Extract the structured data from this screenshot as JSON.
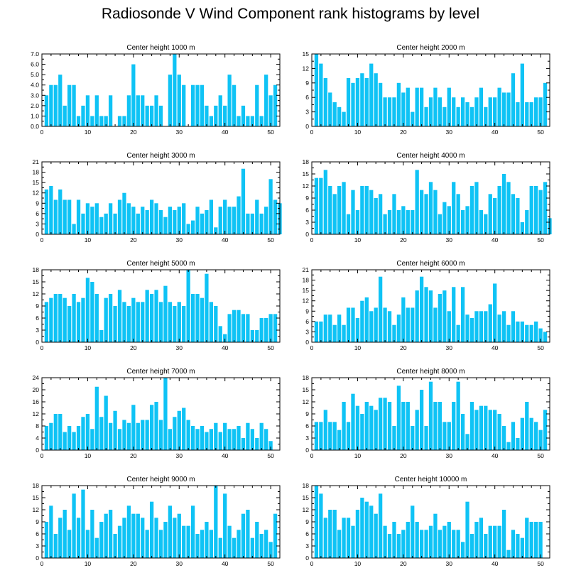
{
  "figure": {
    "title": "Radiosonde V Wind Component rank histograms by level",
    "bar_color": "#0fc3f5",
    "axis_color": "#000000"
  },
  "chart_data": [
    {
      "type": "bar",
      "title": "Center height 1000 m",
      "x_start": 1,
      "xlim": [
        0,
        52
      ],
      "xticks": [
        0,
        10,
        20,
        30,
        40,
        50
      ],
      "ylim": [
        0,
        7
      ],
      "yticks": [
        "0.0",
        "1.0",
        "2.0",
        "3.0",
        "4.0",
        "5.0",
        "6.0",
        "7.0"
      ],
      "values": [
        3,
        4,
        4,
        5,
        2,
        4,
        4,
        1,
        2,
        3,
        1,
        3,
        1,
        1,
        3,
        0,
        1,
        1,
        3,
        6,
        3,
        3,
        2,
        2,
        3,
        2,
        0,
        5,
        7,
        5,
        4,
        0,
        4,
        4,
        4,
        2,
        1,
        2,
        3,
        2,
        5,
        4,
        1,
        2,
        1,
        1,
        4,
        1,
        5,
        3,
        4
      ]
    },
    {
      "type": "bar",
      "title": "Center height 2000 m",
      "x_start": 1,
      "xlim": [
        0,
        52
      ],
      "xticks": [
        0,
        10,
        20,
        30,
        40,
        50
      ],
      "ylim": [
        0,
        15
      ],
      "yticks": [
        "0",
        "3",
        "6",
        "9",
        "12",
        "15"
      ],
      "values": [
        15,
        13,
        10,
        7,
        5,
        4,
        3,
        10,
        9,
        10,
        11,
        10,
        13,
        11,
        9,
        6,
        6,
        6,
        9,
        7,
        8,
        3,
        8,
        8,
        4,
        6,
        8,
        6,
        4,
        8,
        6,
        4,
        6,
        5,
        4,
        6,
        8,
        4,
        6,
        6,
        8,
        7,
        7,
        11,
        5,
        13,
        5,
        5,
        6,
        6,
        9
      ]
    },
    {
      "type": "bar",
      "title": "Center height 3000 m",
      "x_start": 1,
      "xlim": [
        0,
        52
      ],
      "xticks": [
        0,
        10,
        20,
        30,
        40,
        50
      ],
      "ylim": [
        0,
        21
      ],
      "yticks": [
        "0",
        "3",
        "6",
        "9",
        "12",
        "15",
        "18",
        "21"
      ],
      "values": [
        13,
        14,
        10,
        13,
        10,
        10,
        3,
        10,
        6,
        9,
        8,
        9,
        5,
        6,
        9,
        6,
        10,
        12,
        9,
        8,
        6,
        8,
        7,
        10,
        9,
        7,
        5,
        8,
        7,
        8,
        9,
        3,
        4,
        8,
        6,
        7,
        10,
        2,
        8,
        10,
        8,
        8,
        11,
        19,
        6,
        6,
        10,
        6,
        8,
        16,
        10,
        9
      ]
    },
    {
      "type": "bar",
      "title": "Center height 4000 m",
      "x_start": 1,
      "xlim": [
        0,
        52
      ],
      "xticks": [
        0,
        10,
        20,
        30,
        40,
        50
      ],
      "ylim": [
        0,
        18
      ],
      "yticks": [
        "0",
        "3",
        "6",
        "9",
        "12",
        "15",
        "18"
      ],
      "values": [
        14,
        14,
        16,
        12,
        10,
        12,
        13,
        5,
        11,
        6,
        12,
        12,
        11,
        9,
        10,
        5,
        6,
        10,
        6,
        7,
        6,
        6,
        16,
        11,
        10,
        13,
        11,
        5,
        8,
        7,
        13,
        10,
        6,
        7,
        12,
        13,
        6,
        5,
        10,
        9,
        12,
        15,
        13,
        10,
        9,
        3,
        6,
        12,
        12,
        11,
        13,
        4
      ]
    },
    {
      "type": "bar",
      "title": "Center height 5000 m",
      "x_start": 1,
      "xlim": [
        0,
        52
      ],
      "xticks": [
        0,
        10,
        20,
        30,
        40,
        50
      ],
      "ylim": [
        0,
        18
      ],
      "yticks": [
        "0",
        "3",
        "6",
        "9",
        "12",
        "15",
        "18"
      ],
      "values": [
        10,
        11,
        12,
        12,
        11,
        9,
        12,
        10,
        11,
        16,
        15,
        12,
        3,
        11,
        12,
        9,
        13,
        10,
        9,
        11,
        10,
        10,
        13,
        12,
        13,
        10,
        14,
        10,
        9,
        10,
        9,
        18,
        12,
        12,
        11,
        17,
        10,
        9,
        4,
        2,
        7,
        8,
        8,
        7,
        7,
        3,
        3,
        6,
        6,
        7,
        7
      ]
    },
    {
      "type": "bar",
      "title": "Center height 6000 m",
      "x_start": 1,
      "xlim": [
        0,
        52
      ],
      "xticks": [
        0,
        10,
        20,
        30,
        40,
        50
      ],
      "ylim": [
        0,
        21
      ],
      "yticks": [
        "0",
        "3",
        "6",
        "9",
        "12",
        "15",
        "18",
        "21"
      ],
      "values": [
        6,
        6,
        8,
        8,
        5,
        8,
        5,
        10,
        10,
        7,
        12,
        13,
        9,
        10,
        19,
        10,
        9,
        5,
        8,
        13,
        10,
        10,
        15,
        19,
        16,
        15,
        10,
        14,
        15,
        9,
        16,
        5,
        16,
        8,
        7,
        9,
        9,
        9,
        11,
        17,
        8,
        9,
        5,
        9,
        6,
        6,
        5,
        5,
        6,
        4,
        3
      ]
    },
    {
      "type": "bar",
      "title": "Center height 7000 m",
      "x_start": 1,
      "xlim": [
        0,
        52
      ],
      "xticks": [
        0,
        10,
        20,
        30,
        40,
        50
      ],
      "ylim": [
        0,
        24
      ],
      "yticks": [
        "0",
        "4",
        "8",
        "12",
        "16",
        "20",
        "24"
      ],
      "values": [
        8,
        9,
        12,
        12,
        6,
        8,
        6,
        8,
        11,
        12,
        7,
        21,
        11,
        18,
        9,
        13,
        7,
        10,
        9,
        15,
        9,
        10,
        10,
        15,
        16,
        10,
        24,
        7,
        11,
        13,
        14,
        10,
        8,
        7,
        8,
        6,
        7,
        9,
        6,
        9,
        7,
        7,
        8,
        4,
        9,
        7,
        4,
        9,
        7,
        3
      ]
    },
    {
      "type": "bar",
      "title": "Center height 8000 m",
      "x_start": 1,
      "xlim": [
        0,
        52
      ],
      "xticks": [
        0,
        10,
        20,
        30,
        40,
        50
      ],
      "ylim": [
        0,
        18
      ],
      "yticks": [
        "0",
        "3",
        "6",
        "9",
        "12",
        "15",
        "18"
      ],
      "values": [
        7,
        7,
        10,
        7,
        7,
        5,
        12,
        7,
        14,
        11,
        9,
        12,
        11,
        10,
        13,
        13,
        12,
        6,
        16,
        12,
        12,
        6,
        10,
        15,
        6,
        17,
        12,
        12,
        7,
        7,
        12,
        17,
        9,
        4,
        12,
        10,
        11,
        11,
        10,
        10,
        9,
        6,
        2,
        7,
        3,
        8,
        12,
        8,
        7,
        5,
        10
      ]
    },
    {
      "type": "bar",
      "title": "Center height 9000 m",
      "x_start": 1,
      "xlim": [
        0,
        52
      ],
      "xticks": [
        0,
        10,
        20,
        30,
        40,
        50
      ],
      "ylim": [
        0,
        18
      ],
      "yticks": [
        "0",
        "3",
        "6",
        "9",
        "12",
        "15",
        "18"
      ],
      "values": [
        9,
        13,
        6,
        10,
        12,
        7,
        16,
        10,
        17,
        7,
        12,
        5,
        9,
        11,
        12,
        6,
        8,
        10,
        13,
        11,
        11,
        10,
        7,
        14,
        10,
        7,
        9,
        13,
        10,
        11,
        8,
        8,
        13,
        6,
        7,
        9,
        7,
        18,
        5,
        16,
        8,
        5,
        7,
        11,
        12,
        5,
        9,
        6,
        7,
        4,
        11
      ]
    },
    {
      "type": "bar",
      "title": "Center height 10000 m",
      "x_start": 1,
      "xlim": [
        0,
        52
      ],
      "xticks": [
        0,
        10,
        20,
        30,
        40,
        50
      ],
      "ylim": [
        0,
        18
      ],
      "yticks": [
        "0",
        "3",
        "6",
        "9",
        "12",
        "15",
        "18"
      ],
      "values": [
        18,
        16,
        10,
        12,
        12,
        7,
        10,
        10,
        8,
        12,
        15,
        14,
        13,
        11,
        16,
        8,
        6,
        9,
        6,
        7,
        9,
        13,
        9,
        7,
        7,
        8,
        11,
        7,
        8,
        9,
        7,
        7,
        4,
        14,
        6,
        9,
        10,
        6,
        8,
        8,
        8,
        12,
        2,
        7,
        6,
        5,
        10,
        9,
        9,
        9
      ]
    }
  ]
}
